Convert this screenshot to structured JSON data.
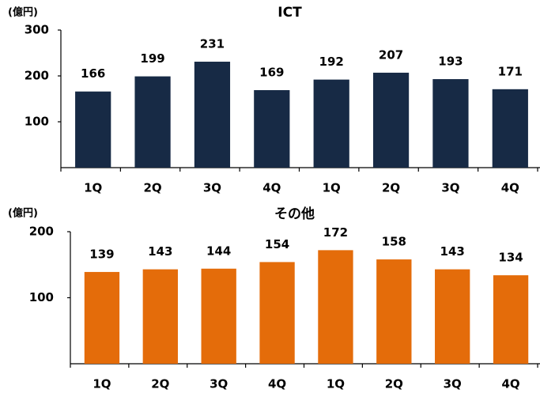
{
  "chart_data": [
    {
      "type": "bar",
      "title": "ICT",
      "unit": "(億円)",
      "categories": [
        "1Q",
        "2Q",
        "3Q",
        "4Q",
        "1Q",
        "2Q",
        "3Q",
        "4Q"
      ],
      "values": [
        166,
        199,
        231,
        169,
        192,
        207,
        193,
        171
      ],
      "color": "#172a45",
      "ylim": [
        0,
        300
      ],
      "yticks": [
        100,
        200,
        300
      ]
    },
    {
      "type": "bar",
      "title": "その他",
      "unit": "(億円)",
      "categories": [
        "1Q",
        "2Q",
        "3Q",
        "4Q",
        "1Q",
        "2Q",
        "3Q",
        "4Q"
      ],
      "values": [
        139,
        143,
        144,
        154,
        172,
        158,
        143,
        134
      ],
      "color": "#e46c0a",
      "ylim": [
        0,
        200
      ],
      "yticks": [
        100,
        200
      ]
    }
  ]
}
